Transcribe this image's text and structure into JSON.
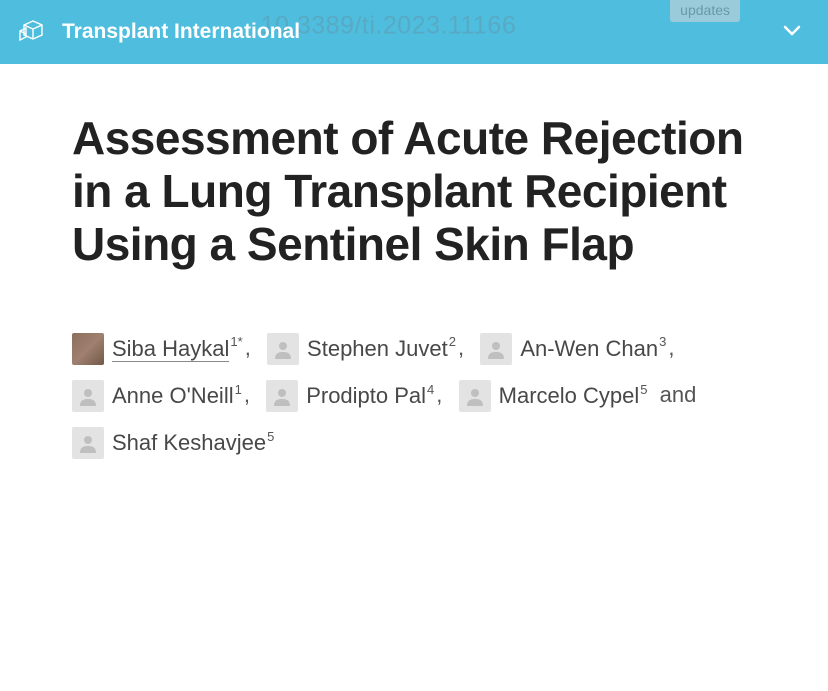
{
  "header": {
    "journal_name": "Transplant International",
    "bg_text": "10.3389/ti.2023.11166",
    "updates_label": "updates",
    "colors": {
      "header_bg": "#4ebdde",
      "header_text": "#ffffff"
    }
  },
  "article": {
    "title": "Assessment of Acute Rejection in a Lung Transplant Recipient Using a Sentinel Skin Flap"
  },
  "authors": [
    {
      "name": "Siba Haykal",
      "affiliation": "1",
      "corresponding": true,
      "has_photo": true,
      "linked": true
    },
    {
      "name": "Stephen Juvet",
      "affiliation": "2",
      "corresponding": false,
      "has_photo": false,
      "linked": false
    },
    {
      "name": "An-Wen Chan",
      "affiliation": "3",
      "corresponding": false,
      "has_photo": false,
      "linked": false
    },
    {
      "name": "Anne O'Neill",
      "affiliation": "1",
      "corresponding": false,
      "has_photo": false,
      "linked": false
    },
    {
      "name": "Prodipto Pal",
      "affiliation": "4",
      "corresponding": false,
      "has_photo": false,
      "linked": false
    },
    {
      "name": "Marcelo Cypel",
      "affiliation": "5",
      "corresponding": false,
      "has_photo": false,
      "linked": false
    },
    {
      "name": "Shaf Keshavjee",
      "affiliation": "5",
      "corresponding": false,
      "has_photo": false,
      "linked": false
    }
  ]
}
